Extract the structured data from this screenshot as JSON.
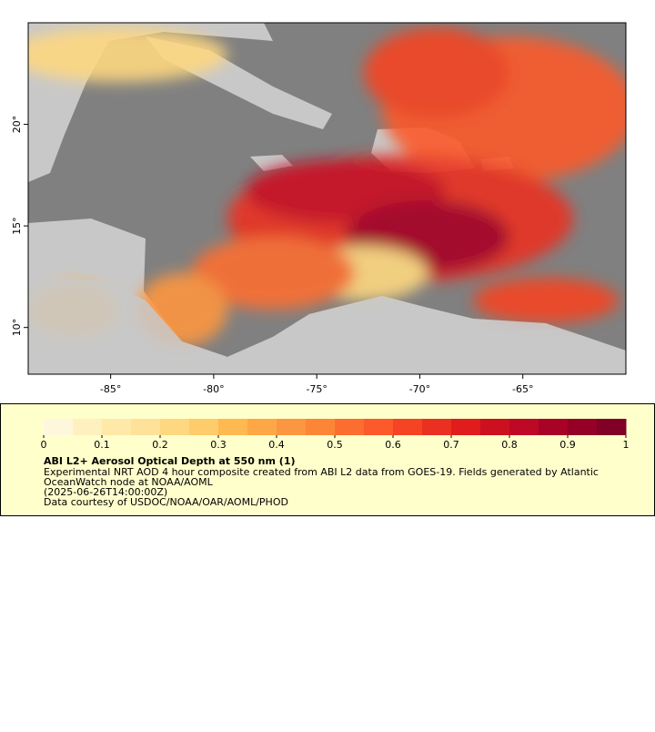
{
  "map": {
    "xlim": [
      -89,
      -60
    ],
    "ylim": [
      7.7,
      25
    ],
    "xticks": [
      {
        "value": -85,
        "label": "-85°"
      },
      {
        "value": -80,
        "label": "-80°"
      },
      {
        "value": -75,
        "label": "-75°"
      },
      {
        "value": -70,
        "label": "-70°"
      },
      {
        "value": -65,
        "label": "-65°"
      }
    ],
    "yticks": [
      {
        "value": 10,
        "label": "10°"
      },
      {
        "value": 15,
        "label": "15°"
      },
      {
        "value": 20,
        "label": "20°"
      }
    ]
  },
  "legend": {
    "range": [
      0,
      1
    ],
    "ticks": [
      0,
      0.1,
      0.2,
      0.3,
      0.4,
      0.5,
      0.6,
      0.7,
      0.8,
      0.9,
      1
    ],
    "colors": [
      "#fff7dc",
      "#fff0c0",
      "#ffe9a8",
      "#fee29a",
      "#fed880",
      "#fecc6a",
      "#feb950",
      "#fea746",
      "#fd9640",
      "#fd8538",
      "#fc6e30",
      "#fc5a2a",
      "#f44424",
      "#ea3020",
      "#e01c1c",
      "#cc1020",
      "#bd0826",
      "#a80226",
      "#940026",
      "#800026"
    ],
    "title": "ABI L2+ Aerosol Optical Depth at 550 nm (1)",
    "lines": [
      "Experimental NRT AOD 4 hour composite created from ABI L2 data from GOES-19. Fields generated by Atlantic",
      "OceanWatch node at NOAA/AOML",
      "(2025-06-26T14:00:00Z)",
      "Data courtesy of USDOC/NOAA/OAR/AOML/PHOD"
    ]
  }
}
